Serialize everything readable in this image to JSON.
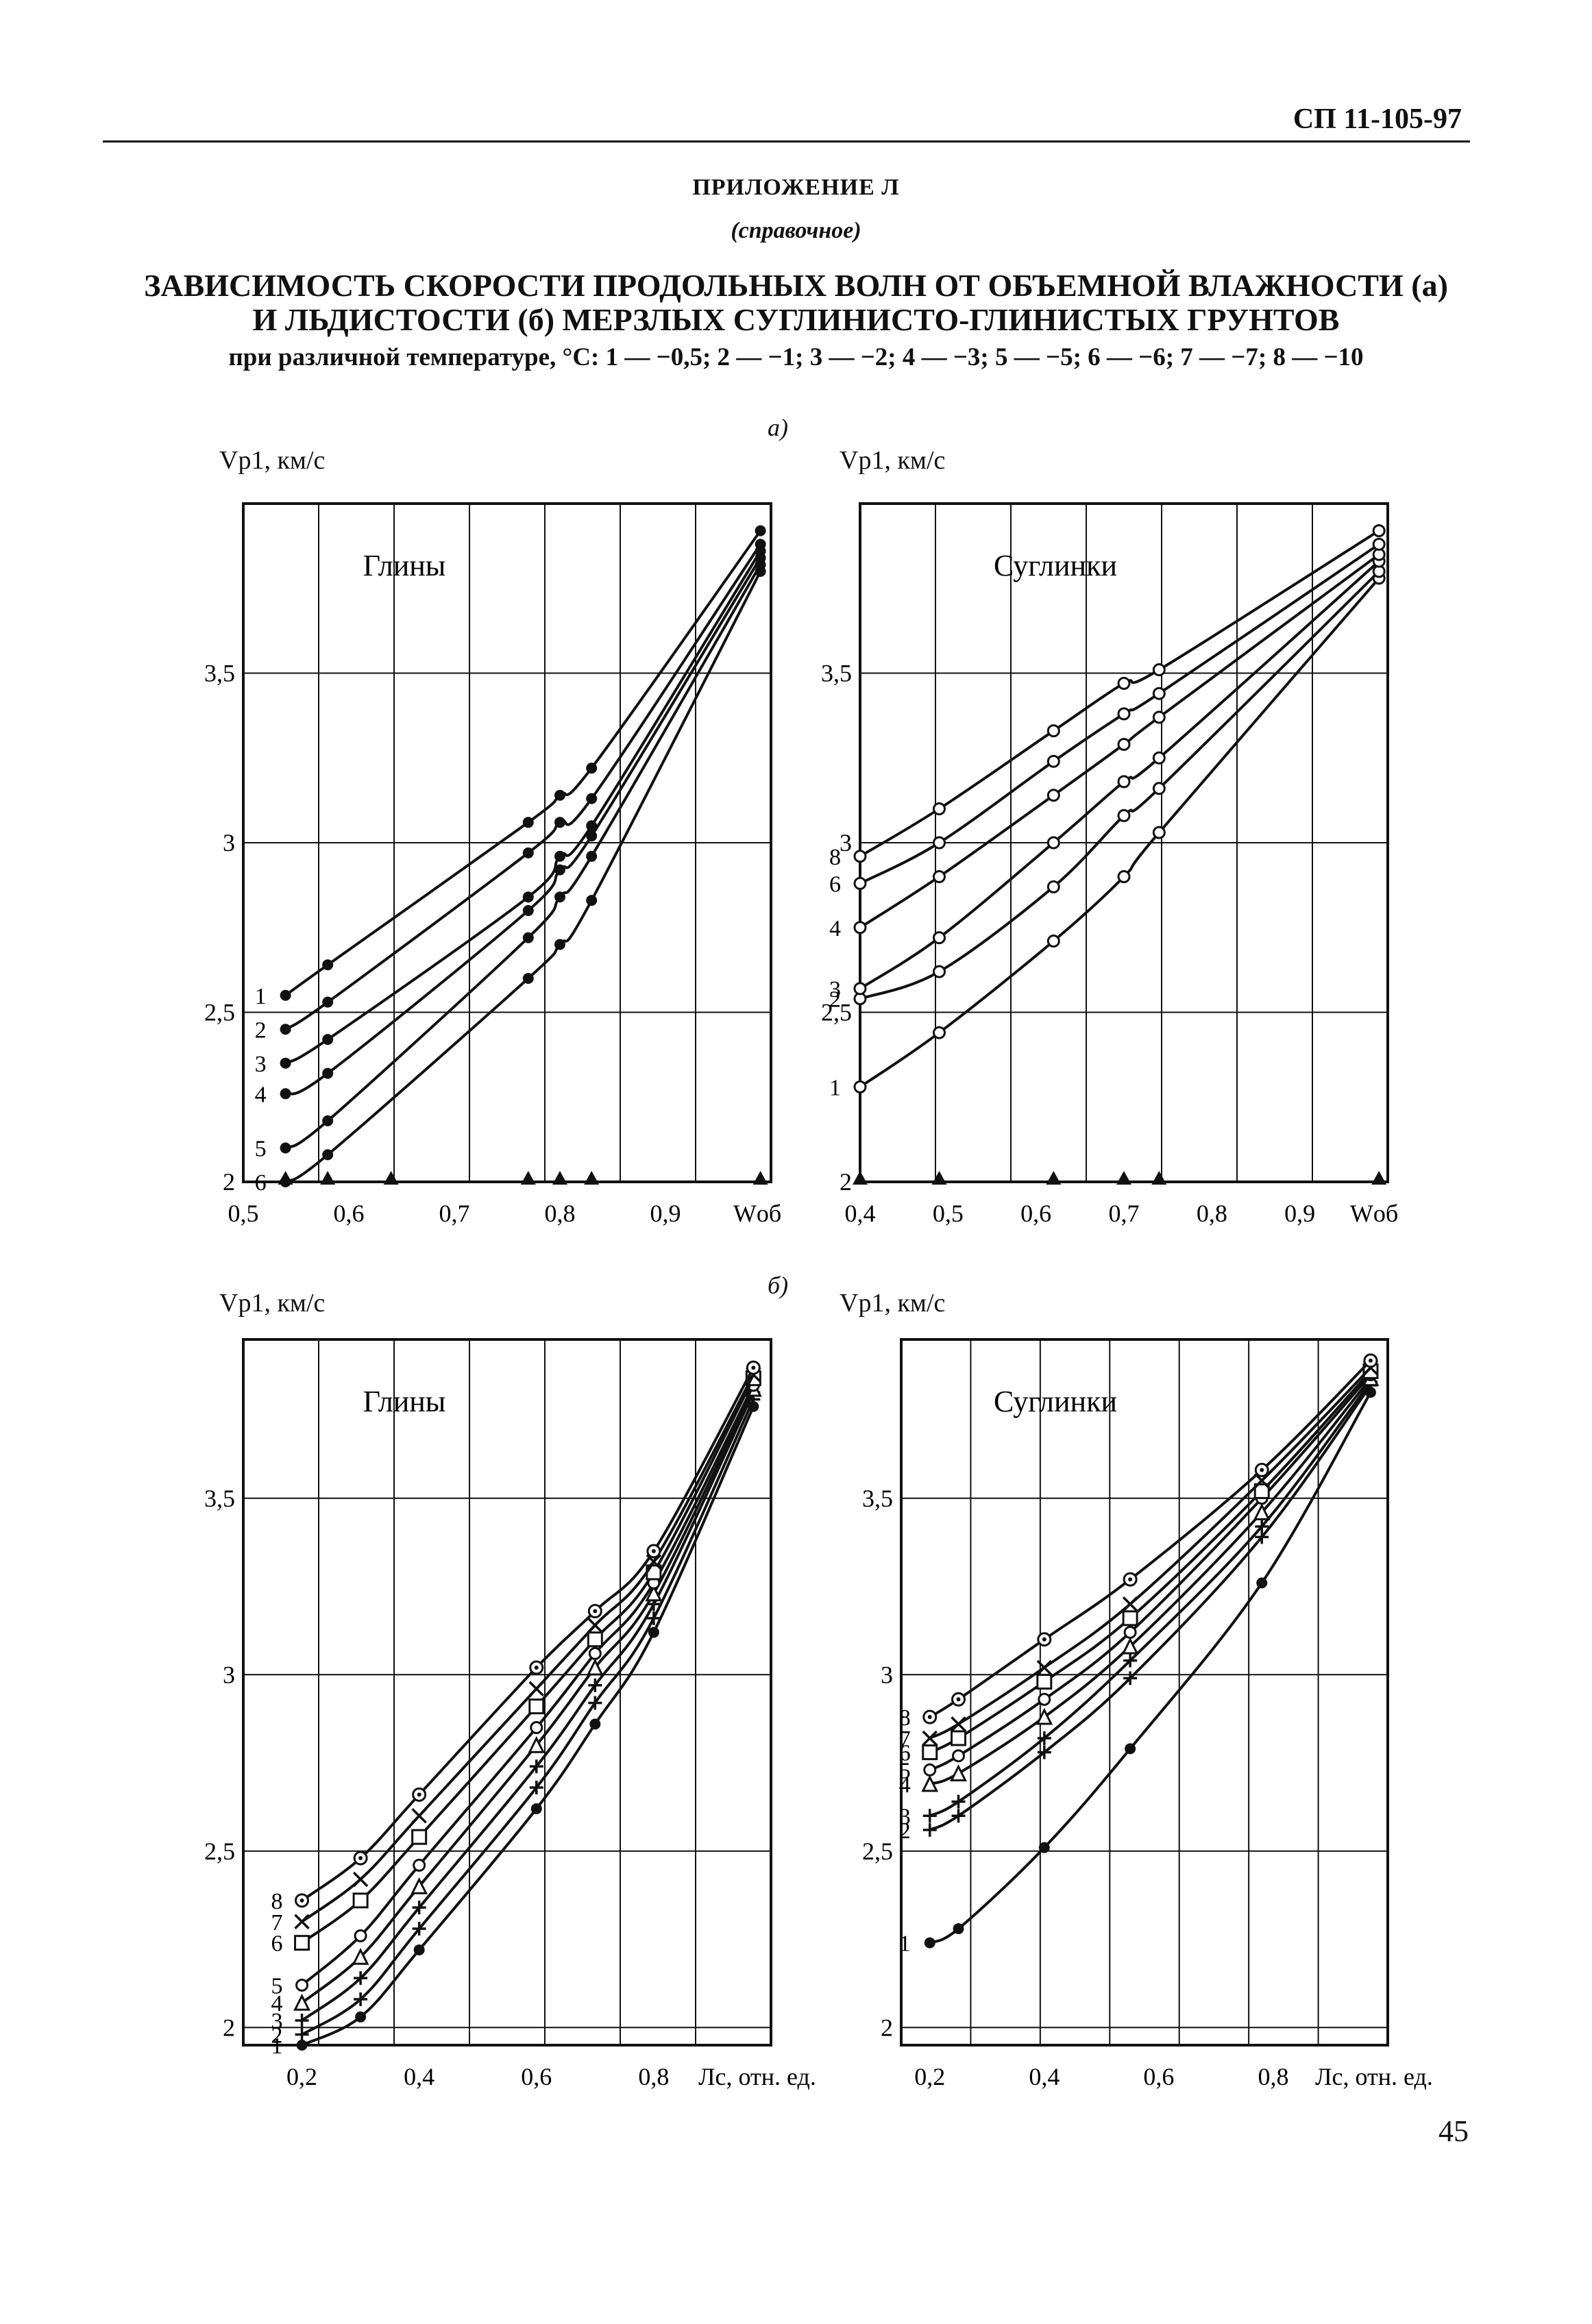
{
  "header": {
    "doc_code": "СП 11-105-97",
    "appendix": "ПРИЛОЖЕНИЕ Л",
    "appendix_kind": "(справочное)",
    "title_line1": "ЗАВИСИМОСТЬ СКОРОСТИ ПРОДОЛЬНЫХ ВОЛН ОТ ОБЪЕМНОЙ ВЛАЖНОСТИ (а)",
    "title_line2": "И ЛЬДИСТОСТИ (б) МЕРЗЛЫХ СУГЛИНИСТО-ГЛИНИСТЫХ ГРУНТОВ",
    "legend_line": "при различной температуре, °С: 1 — −0,5; 2 — −1; 3 — −2; 4 — −3; 5 — −5; 6 — −6; 7 — −7; 8 — −10"
  },
  "part_a_label": "а)",
  "part_b_label": "б)",
  "page_number": "45",
  "chart_data": [
    {
      "type": "line",
      "panel": "а",
      "title": "Глины",
      "ylabel": "Vp1, км/с",
      "xlabel": "Wоб",
      "xlim": [
        0.5,
        1.0
      ],
      "ylim": [
        2.0,
        4.0
      ],
      "xticks": [
        0.5,
        0.6,
        0.7,
        0.8,
        0.9
      ],
      "xtick_labels": [
        "0,5",
        "0,6",
        "0,7",
        "0,8",
        "0,9",
        "Wоб"
      ],
      "yticks": [
        2.0,
        2.5,
        3.0,
        3.5
      ],
      "ytick_labels": [
        "2",
        "2,5",
        "3",
        "3,5"
      ],
      "marker": "filled-circle",
      "triangle_markers_x": [
        0.54,
        0.58,
        0.64,
        0.77,
        0.8,
        0.83,
        0.99
      ],
      "series": [
        {
          "name": "1",
          "x": [
            0.54,
            0.58,
            0.77,
            0.8,
            0.83,
            0.99
          ],
          "y": [
            2.55,
            2.64,
            3.06,
            3.14,
            3.22,
            3.92
          ]
        },
        {
          "name": "2",
          "x": [
            0.54,
            0.58,
            0.77,
            0.8,
            0.83,
            0.99
          ],
          "y": [
            2.45,
            2.53,
            2.97,
            3.06,
            3.13,
            3.88
          ]
        },
        {
          "name": "3",
          "x": [
            0.54,
            0.58,
            0.77,
            0.8,
            0.83,
            0.99
          ],
          "y": [
            2.35,
            2.42,
            2.84,
            2.96,
            3.05,
            3.86
          ]
        },
        {
          "name": "4",
          "x": [
            0.54,
            0.58,
            0.77,
            0.8,
            0.83,
            0.99
          ],
          "y": [
            2.26,
            2.32,
            2.8,
            2.92,
            3.02,
            3.84
          ]
        },
        {
          "name": "5",
          "x": [
            0.54,
            0.58,
            0.77,
            0.8,
            0.83,
            0.99
          ],
          "y": [
            2.1,
            2.18,
            2.72,
            2.84,
            2.96,
            3.82
          ]
        },
        {
          "name": "6",
          "x": [
            0.54,
            0.58,
            0.77,
            0.8,
            0.83,
            0.99
          ],
          "y": [
            2.0,
            2.08,
            2.6,
            2.7,
            2.83,
            3.8
          ]
        }
      ]
    },
    {
      "type": "line",
      "panel": "а",
      "title": "Суглинки",
      "ylabel": "Vp1, км/с",
      "xlabel": "Wоб",
      "xlim": [
        0.4,
        1.0
      ],
      "ylim": [
        2.0,
        4.0
      ],
      "xticks": [
        0.4,
        0.5,
        0.6,
        0.7,
        0.8,
        0.9
      ],
      "xtick_labels": [
        "0,4",
        "0,5",
        "0,6",
        "0,7",
        "0,8",
        "0,9",
        "Wоб"
      ],
      "yticks": [
        2.0,
        2.5,
        3.0,
        3.5
      ],
      "ytick_labels": [
        "2",
        "2,5",
        "3",
        "3,5"
      ],
      "marker": "open-circle",
      "triangle_markers_x": [
        0.4,
        0.49,
        0.62,
        0.7,
        0.74,
        0.99
      ],
      "series": [
        {
          "name": "1",
          "x": [
            0.4,
            0.49,
            0.62,
            0.7,
            0.74,
            0.99
          ],
          "y": [
            2.28,
            2.44,
            2.71,
            2.9,
            3.03,
            3.78
          ]
        },
        {
          "name": "2",
          "x": [
            0.4,
            0.49,
            0.62,
            0.7,
            0.74,
            0.99
          ],
          "y": [
            2.54,
            2.62,
            2.87,
            3.08,
            3.16,
            3.8
          ]
        },
        {
          "name": "3",
          "x": [
            0.4,
            0.49,
            0.62,
            0.7,
            0.74,
            0.99
          ],
          "y": [
            2.57,
            2.72,
            3.0,
            3.18,
            3.25,
            3.83
          ]
        },
        {
          "name": "4",
          "x": [
            0.4,
            0.49,
            0.62,
            0.7,
            0.74,
            0.99
          ],
          "y": [
            2.75,
            2.9,
            3.14,
            3.29,
            3.37,
            3.85
          ]
        },
        {
          "name": "6",
          "x": [
            0.4,
            0.49,
            0.62,
            0.7,
            0.74,
            0.99
          ],
          "y": [
            2.88,
            3.0,
            3.24,
            3.38,
            3.44,
            3.88
          ]
        },
        {
          "name": "8",
          "x": [
            0.4,
            0.49,
            0.62,
            0.7,
            0.74,
            0.99
          ],
          "y": [
            2.96,
            3.1,
            3.33,
            3.47,
            3.51,
            3.92
          ]
        }
      ]
    },
    {
      "type": "line",
      "panel": "б",
      "title": "Глины",
      "ylabel": "Vp1, км/с",
      "xlabel": "Лс, отн. ед.",
      "xlim": [
        0.1,
        1.0
      ],
      "ylim": [
        1.95,
        3.95
      ],
      "xticks": [
        0.2,
        0.4,
        0.6,
        0.8
      ],
      "xtick_labels": [
        "0,2",
        "0,4",
        "0,6",
        "0,8",
        "Лс, отн. ед."
      ],
      "yticks": [
        2.0,
        2.5,
        3.0,
        3.5
      ],
      "ytick_labels": [
        "2",
        "2,5",
        "3",
        "3,5"
      ],
      "series": [
        {
          "name": "1",
          "marker": "filled-circle",
          "x": [
            0.2,
            0.3,
            0.4,
            0.6,
            0.7,
            0.8,
            0.97
          ],
          "y": [
            1.95,
            2.03,
            2.22,
            2.62,
            2.86,
            3.12,
            3.76
          ]
        },
        {
          "name": "2",
          "marker": "plus",
          "x": [
            0.2,
            0.3,
            0.4,
            0.6,
            0.7,
            0.8,
            0.97
          ],
          "y": [
            1.98,
            2.08,
            2.28,
            2.68,
            2.92,
            3.16,
            3.78
          ]
        },
        {
          "name": "3",
          "marker": "plus",
          "x": [
            0.2,
            0.3,
            0.4,
            0.6,
            0.7,
            0.8,
            0.97
          ],
          "y": [
            2.02,
            2.14,
            2.34,
            2.74,
            2.97,
            3.2,
            3.8
          ]
        },
        {
          "name": "4",
          "marker": "triangle",
          "x": [
            0.2,
            0.3,
            0.4,
            0.6,
            0.7,
            0.8,
            0.97
          ],
          "y": [
            2.07,
            2.2,
            2.4,
            2.8,
            3.02,
            3.23,
            3.81
          ]
        },
        {
          "name": "5",
          "marker": "open-circle",
          "x": [
            0.2,
            0.3,
            0.4,
            0.6,
            0.7,
            0.8,
            0.97
          ],
          "y": [
            2.12,
            2.26,
            2.46,
            2.85,
            3.06,
            3.26,
            3.82
          ]
        },
        {
          "name": "6",
          "marker": "square",
          "x": [
            0.2,
            0.3,
            0.4,
            0.6,
            0.7,
            0.8,
            0.97
          ],
          "y": [
            2.24,
            2.36,
            2.54,
            2.91,
            3.1,
            3.29,
            3.84
          ]
        },
        {
          "name": "7",
          "marker": "cross",
          "x": [
            0.2,
            0.3,
            0.4,
            0.6,
            0.7,
            0.8,
            0.97
          ],
          "y": [
            2.3,
            2.42,
            2.6,
            2.96,
            3.14,
            3.32,
            3.85
          ]
        },
        {
          "name": "8",
          "marker": "dot-circle",
          "x": [
            0.2,
            0.3,
            0.4,
            0.6,
            0.7,
            0.8,
            0.97
          ],
          "y": [
            2.36,
            2.48,
            2.66,
            3.02,
            3.18,
            3.35,
            3.87
          ]
        }
      ]
    },
    {
      "type": "line",
      "panel": "б",
      "title": "Суглинки",
      "ylabel": "Vp1, км/с",
      "xlabel": "Лс, отн. ед.",
      "xlim": [
        0.15,
        1.0
      ],
      "ylim": [
        1.95,
        3.95
      ],
      "xticks": [
        0.2,
        0.4,
        0.6,
        0.8
      ],
      "xtick_labels": [
        "0,2",
        "0,4",
        "0,6",
        "0,8",
        "Лс, отн. ед."
      ],
      "yticks": [
        2.0,
        2.5,
        3.0,
        3.5
      ],
      "ytick_labels": [
        "2",
        "2,5",
        "3",
        "3,5"
      ],
      "series": [
        {
          "name": "1",
          "marker": "filled-circle",
          "x": [
            0.2,
            0.25,
            0.4,
            0.55,
            0.78,
            0.97
          ],
          "y": [
            2.24,
            2.28,
            2.51,
            2.79,
            3.26,
            3.8
          ]
        },
        {
          "name": "2",
          "marker": "plus",
          "x": [
            0.2,
            0.25,
            0.4,
            0.55,
            0.78,
            0.97
          ],
          "y": [
            2.56,
            2.6,
            2.78,
            2.99,
            3.39,
            3.82
          ]
        },
        {
          "name": "3",
          "marker": "plus",
          "x": [
            0.2,
            0.25,
            0.4,
            0.55,
            0.78,
            0.97
          ],
          "y": [
            2.6,
            2.64,
            2.82,
            3.04,
            3.42,
            3.83
          ]
        },
        {
          "name": "4",
          "marker": "triangle",
          "x": [
            0.2,
            0.25,
            0.4,
            0.55,
            0.78,
            0.97
          ],
          "y": [
            2.69,
            2.72,
            2.88,
            3.08,
            3.46,
            3.84
          ]
        },
        {
          "name": "5",
          "marker": "open-circle",
          "x": [
            0.2,
            0.25,
            0.4,
            0.55,
            0.78,
            0.97
          ],
          "y": [
            2.73,
            2.77,
            2.93,
            3.12,
            3.5,
            3.85
          ]
        },
        {
          "name": "6",
          "marker": "square",
          "x": [
            0.2,
            0.25,
            0.4,
            0.55,
            0.78,
            0.97
          ],
          "y": [
            2.78,
            2.82,
            2.98,
            3.16,
            3.52,
            3.86
          ]
        },
        {
          "name": "7",
          "marker": "cross",
          "x": [
            0.2,
            0.25,
            0.4,
            0.55,
            0.78,
            0.97
          ],
          "y": [
            2.82,
            2.86,
            3.02,
            3.2,
            3.55,
            3.87
          ]
        },
        {
          "name": "8",
          "marker": "dot-circle",
          "x": [
            0.2,
            0.25,
            0.4,
            0.55,
            0.78,
            0.97
          ],
          "y": [
            2.88,
            2.93,
            3.1,
            3.27,
            3.58,
            3.89
          ]
        }
      ]
    }
  ]
}
